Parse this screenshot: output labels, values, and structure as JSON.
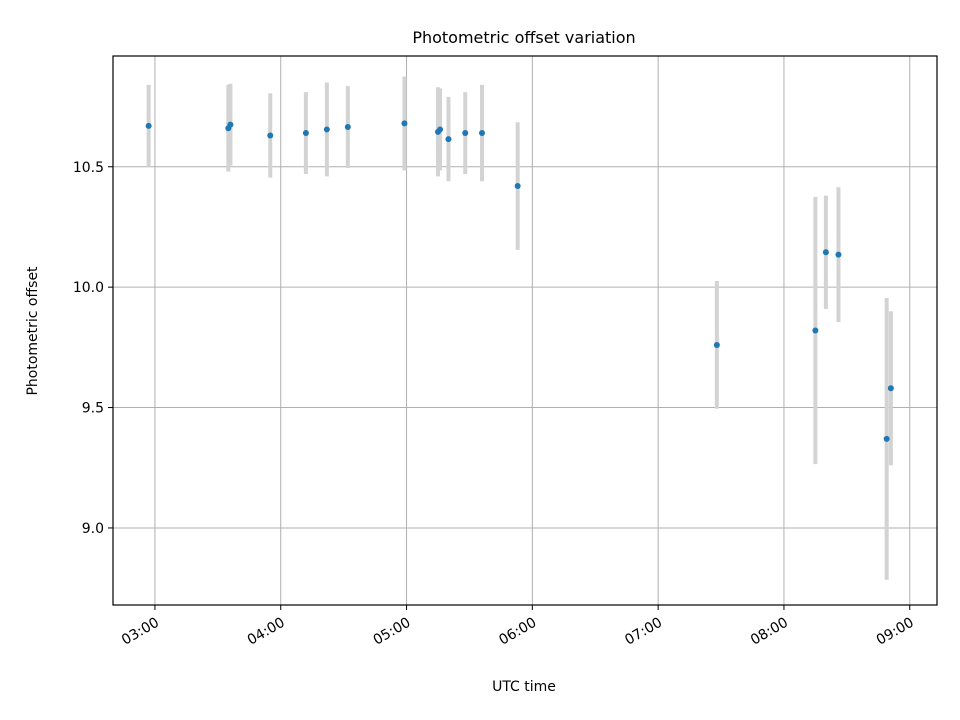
{
  "chart_data": {
    "type": "scatter",
    "title": "Photometric offset variation",
    "xlabel": "UTC time",
    "ylabel": "Photometric offset",
    "x_ticks": [
      "03:00",
      "04:00",
      "05:00",
      "06:00",
      "07:00",
      "08:00",
      "09:00"
    ],
    "y_ticks": [
      "9.0",
      "9.5",
      "10.0",
      "10.5"
    ],
    "xlim": [
      "02:40",
      "09:13"
    ],
    "ylim": [
      8.68,
      10.96
    ],
    "grid": true,
    "colors": {
      "point": "#1f77b4",
      "errorbar": "#d3d3d3",
      "grid": "#b0b0b0"
    },
    "points": [
      {
        "x": "02:57",
        "y": 10.67,
        "err": 0.17
      },
      {
        "x": "03:35",
        "y": 10.66,
        "err": 0.18
      },
      {
        "x": "03:36",
        "y": 10.675,
        "err": 0.17
      },
      {
        "x": "03:55",
        "y": 10.63,
        "err": 0.175
      },
      {
        "x": "04:12",
        "y": 10.64,
        "err": 0.17
      },
      {
        "x": "04:22",
        "y": 10.655,
        "err": 0.195
      },
      {
        "x": "04:32",
        "y": 10.665,
        "err": 0.17
      },
      {
        "x": "04:59",
        "y": 10.68,
        "err": 0.195
      },
      {
        "x": "05:15",
        "y": 10.645,
        "err": 0.185
      },
      {
        "x": "05:16",
        "y": 10.655,
        "err": 0.17
      },
      {
        "x": "05:20",
        "y": 10.615,
        "err": 0.175
      },
      {
        "x": "05:28",
        "y": 10.64,
        "err": 0.17
      },
      {
        "x": "05:36",
        "y": 10.64,
        "err": 0.2
      },
      {
        "x": "05:53",
        "y": 10.42,
        "err": 0.265
      },
      {
        "x": "07:28",
        "y": 9.76,
        "err": 0.265
      },
      {
        "x": "08:15",
        "y": 9.82,
        "err": 0.555
      },
      {
        "x": "08:20",
        "y": 10.145,
        "err": 0.235
      },
      {
        "x": "08:26",
        "y": 10.135,
        "err": 0.28
      },
      {
        "x": "08:49",
        "y": 9.37,
        "err": 0.585
      },
      {
        "x": "08:51",
        "y": 9.58,
        "err": 0.32
      }
    ]
  }
}
